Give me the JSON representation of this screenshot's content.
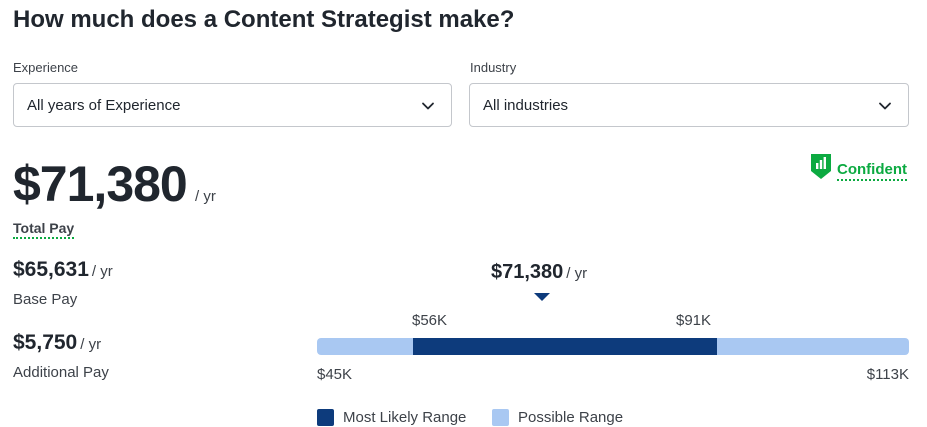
{
  "heading": "How much does a Content Strategist make?",
  "filters": {
    "experience": {
      "label": "Experience",
      "value": "All years of Experience"
    },
    "industry": {
      "label": "Industry",
      "value": "All industries"
    }
  },
  "total": {
    "amount": "$71,380",
    "unit": "/ yr",
    "label": "Total Pay"
  },
  "confidence": {
    "label": "Confident",
    "color": "#0caa41"
  },
  "base": {
    "amount": "$65,631",
    "unit": "/ yr",
    "label": "Base Pay"
  },
  "additional": {
    "amount": "$5,750",
    "unit": "/ yr",
    "label": "Additional Pay"
  },
  "range": {
    "median_label": "$71,380",
    "median_unit": "/ yr",
    "median": 71380,
    "possible_min": 45000,
    "possible_max": 113000,
    "likely_min": 56000,
    "likely_max": 91000,
    "possible_min_label": "$45K",
    "possible_max_label": "$113K",
    "likely_min_label": "$56K",
    "likely_max_label": "$91K"
  },
  "legend": {
    "likely": {
      "label": "Most Likely Range",
      "color": "#0d3b7c"
    },
    "possible": {
      "label": "Possible Range",
      "color": "#a9c8f2"
    }
  },
  "icons": {
    "dropdown": "chevron-down-icon",
    "confidence": "shield-chart-icon"
  }
}
